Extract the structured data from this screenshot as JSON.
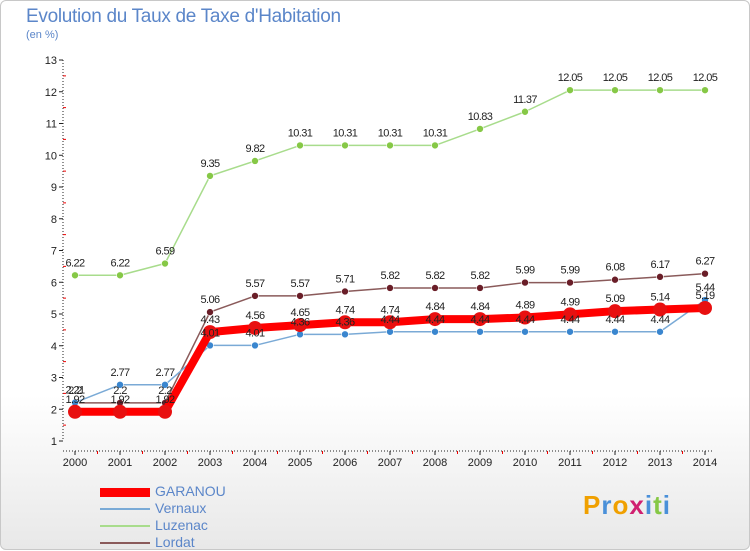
{
  "title": "Evolution du Taux de Taxe d'Habitation",
  "unit_label": "(en %)",
  "logo_text": "Proxiti",
  "chart_data": {
    "type": "line",
    "title": "Evolution du Taux de Taxe d'Habitation",
    "ylabel": "(en %)",
    "xlabel": "",
    "x": [
      "2000",
      "2001",
      "2002",
      "2003",
      "2004",
      "2005",
      "2006",
      "2007",
      "2008",
      "2009",
      "2010",
      "2011",
      "2012",
      "2013",
      "2014"
    ],
    "ylim": [
      1,
      13
    ],
    "yticks": [
      1,
      2,
      3,
      4,
      5,
      6,
      7,
      8,
      9,
      10,
      11,
      12,
      13
    ],
    "grid": false,
    "legend_position": "bottom-left",
    "series": [
      {
        "name": "GARANOU",
        "color": "#ff0000",
        "point_color": "#e81010",
        "width": 8,
        "marker": 7,
        "values": [
          1.92,
          1.92,
          1.92,
          4.43,
          4.56,
          4.65,
          4.74,
          4.74,
          4.84,
          4.84,
          4.89,
          4.99,
          5.09,
          5.14,
          5.19
        ],
        "labels": [
          "1.92",
          "1.92",
          "1.92",
          "4.43",
          "4.56",
          "4.65",
          "4.74",
          "4.74",
          "4.84",
          "4.84",
          "4.89",
          "4.99",
          "5.09",
          "5.14",
          "5.19"
        ]
      },
      {
        "name": "Vernaux",
        "color": "#7aaad6",
        "point_color": "#3a86cf",
        "width": 1.5,
        "marker": 3.5,
        "values": [
          2.21,
          2.77,
          2.77,
          4.01,
          4.01,
          4.36,
          4.36,
          4.44,
          4.44,
          4.44,
          4.44,
          4.44,
          4.44,
          4.44,
          5.44
        ],
        "labels": [
          "2.21",
          "2.77",
          "2.77",
          "4.01",
          "4.01",
          "4.36",
          "4.36",
          "4.44",
          "4.44",
          "4.44",
          "4.44",
          "4.44",
          "4.44",
          "4.44",
          "5.44"
        ]
      },
      {
        "name": "Luzenac",
        "color": "#a8dc8c",
        "point_color": "#86c846",
        "width": 1.5,
        "marker": 3.5,
        "values": [
          6.22,
          6.22,
          6.59,
          9.35,
          9.82,
          10.31,
          10.31,
          10.31,
          10.31,
          10.83,
          11.37,
          12.05,
          12.05,
          12.05,
          12.05
        ],
        "labels": [
          "6.22",
          "6.22",
          "6.59",
          "9.35",
          "9.82",
          "10.31",
          "10.31",
          "10.31",
          "10.31",
          "10.83",
          "11.37",
          "12.05",
          "12.05",
          "12.05",
          "12.05"
        ]
      },
      {
        "name": "Lordat",
        "color": "#8a5a5a",
        "point_color": "#6a1e28",
        "width": 1.5,
        "marker": 3.5,
        "values": [
          2.2,
          2.2,
          2.2,
          5.06,
          5.57,
          5.57,
          5.71,
          5.82,
          5.82,
          5.82,
          5.99,
          5.99,
          6.08,
          6.17,
          6.27
        ],
        "labels": [
          "2.2",
          "2.2",
          "2.2",
          "5.06",
          "5.57",
          "5.57",
          "5.71",
          "5.82",
          "5.82",
          "5.82",
          "5.99",
          "5.99",
          "6.08",
          "6.17",
          "6.27"
        ]
      }
    ]
  }
}
